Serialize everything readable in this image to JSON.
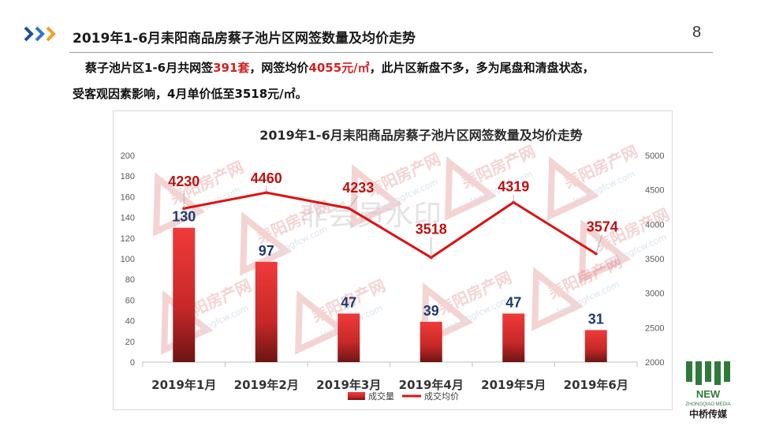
{
  "header": {
    "title": "2019年1-6月耒阳商品房蔡子池片区网签数量及均价走势",
    "page_number": "8",
    "accent_color": "#1f6fbf"
  },
  "summary": {
    "line1_a": "蔡子池片区1-6月共网签",
    "line1_b": "391套",
    "line1_c": "，网签均价",
    "line1_d": "4055元/㎡",
    "line1_e": "，此片区新盘不多，多为尾盘和清盘状态，",
    "line2": "受客观因素影响，4月单价低至3518元/㎡。",
    "highlight_color": "#d22222"
  },
  "chart_data": {
    "type": "bar",
    "title": "2019年1-6月耒阳商品房蔡子池片区网签数量及均价走势",
    "categories": [
      "2019年1月",
      "2019年2月",
      "2019年3月",
      "2019年4月",
      "2019年5月",
      "2019年6月"
    ],
    "series": [
      {
        "name": "成交量",
        "type": "bar",
        "axis": "left",
        "values": [
          130,
          97,
          47,
          39,
          47,
          31
        ],
        "color": "#e03030",
        "label_color": "#1f3b6e"
      },
      {
        "name": "成交均价",
        "type": "line",
        "axis": "right",
        "values": [
          4230,
          4460,
          4233,
          3518,
          4319,
          3574
        ],
        "color": "#e01010",
        "label_color": "#c01010"
      }
    ],
    "y_left": {
      "min": 0,
      "max": 200,
      "step": 20
    },
    "y_right": {
      "min": 2000,
      "max": 5000,
      "step": 500
    },
    "legend_position": "bottom",
    "grid": false
  },
  "watermarks": {
    "center_text": "非会员水印",
    "brand_text": "耒阳房产网",
    "url_text": "leiyangfcw.com"
  },
  "logo": {
    "word": "NEW",
    "sub": "ZHONGQIAO MEDIA",
    "cn": "中桥传媒",
    "color": "#2f7a3a"
  }
}
